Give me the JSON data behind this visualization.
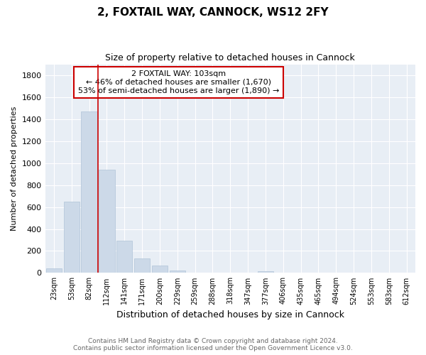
{
  "title": "2, FOXTAIL WAY, CANNOCK, WS12 2FY",
  "subtitle": "Size of property relative to detached houses in Cannock",
  "xlabel": "Distribution of detached houses by size in Cannock",
  "ylabel": "Number of detached properties",
  "bar_color": "#ccd9e8",
  "bar_edge_color": "#b0c4d8",
  "vline_color": "#cc0000",
  "annotation_box_edge_color": "#cc0000",
  "annotation_text_line1": "2 FOXTAIL WAY: 103sqm",
  "annotation_text_line2": "← 46% of detached houses are smaller (1,670)",
  "annotation_text_line3": "53% of semi-detached houses are larger (1,890) →",
  "categories": [
    "23sqm",
    "53sqm",
    "82sqm",
    "112sqm",
    "141sqm",
    "171sqm",
    "200sqm",
    "229sqm",
    "259sqm",
    "288sqm",
    "318sqm",
    "347sqm",
    "377sqm",
    "406sqm",
    "435sqm",
    "465sqm",
    "494sqm",
    "524sqm",
    "553sqm",
    "583sqm",
    "612sqm"
  ],
  "values": [
    40,
    650,
    1470,
    940,
    295,
    130,
    65,
    20,
    5,
    0,
    0,
    0,
    15,
    0,
    0,
    0,
    0,
    0,
    0,
    0,
    0
  ],
  "ylim": [
    0,
    1900
  ],
  "yticks": [
    0,
    200,
    400,
    600,
    800,
    1000,
    1200,
    1400,
    1600,
    1800
  ],
  "vline_pos": 2.5,
  "footer_line1": "Contains HM Land Registry data © Crown copyright and database right 2024.",
  "footer_line2": "Contains public sector information licensed under the Open Government Licence v3.0.",
  "background_color": "#ffffff",
  "plot_bg_color": "#e8eef5"
}
